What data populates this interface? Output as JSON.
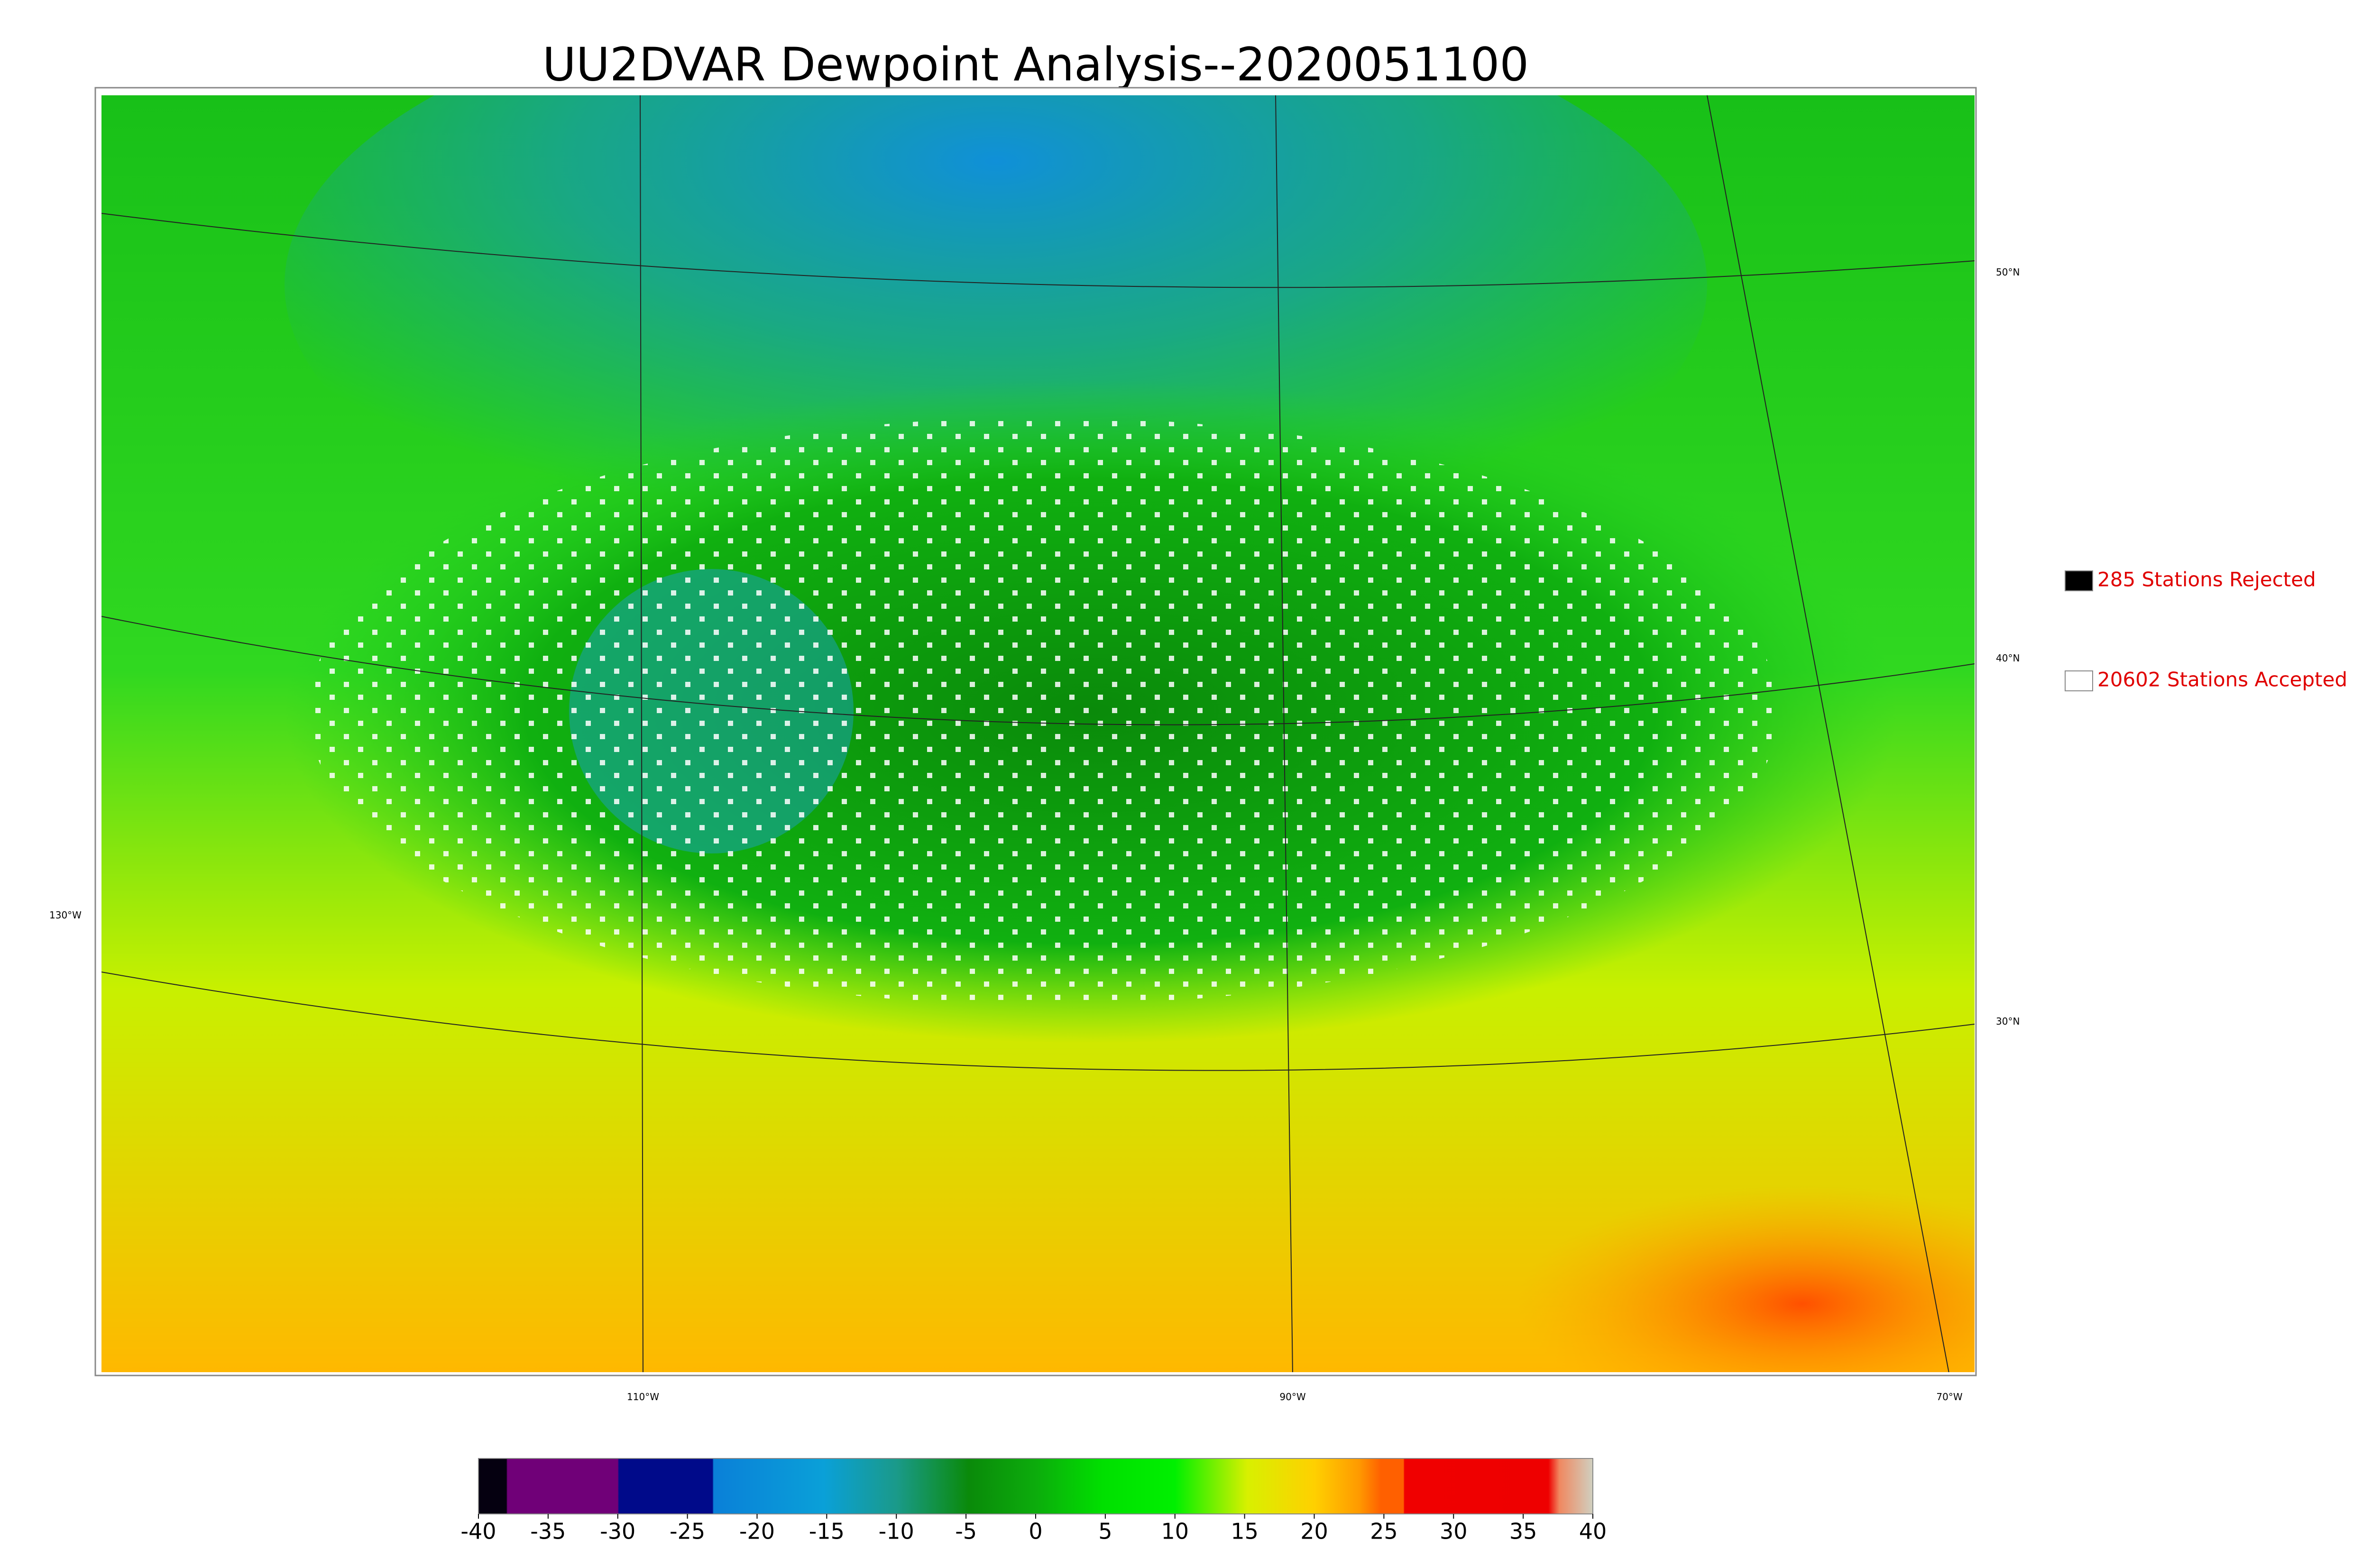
{
  "title": "UU2DVAR Dewpoint Analysis--2020051100",
  "map": {
    "latitude_labels": [
      "50°N",
      "40°N",
      "30°N"
    ],
    "longitude_labels": [
      "130°W",
      "110°W",
      "90°W",
      "70°W"
    ]
  },
  "legend": [
    {
      "label": "285 Stations Rejected"
    },
    {
      "label": "20602 Stations Accepted"
    }
  ],
  "colorbar": {
    "lim": [
      -40,
      40
    ],
    "ticks": [
      -40,
      -35,
      -30,
      -25,
      -20,
      -15,
      -10,
      -5,
      0,
      5,
      10,
      15,
      20,
      25,
      30,
      35,
      40
    ]
  }
}
